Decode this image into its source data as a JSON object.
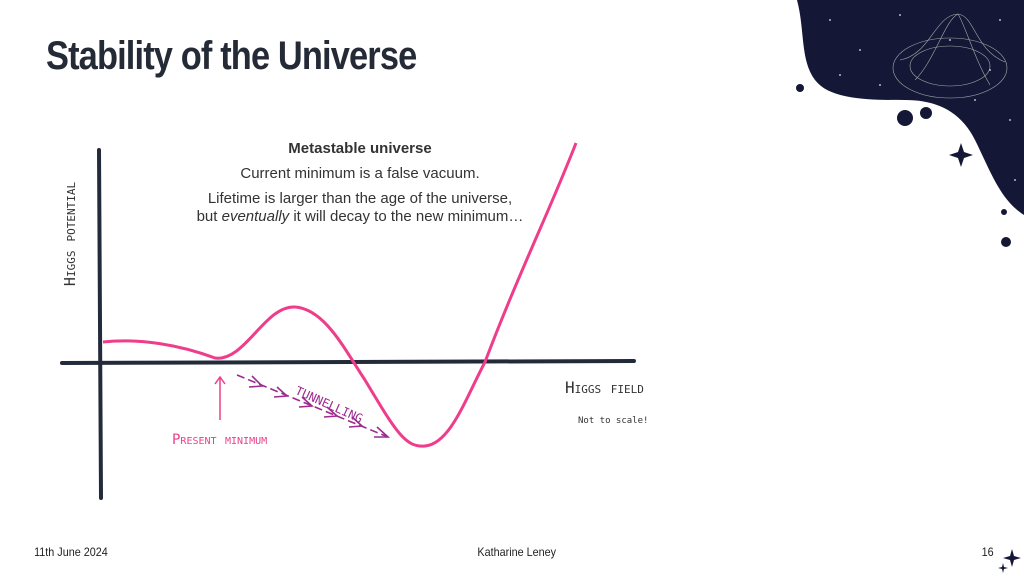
{
  "slide": {
    "title": "Stability of the Universe",
    "heading": "Metastable universe",
    "line1": "Current minimum is a false vacuum.",
    "line2": "Lifetime is larger than the age of the universe,",
    "line3_pre": "but ",
    "line3_em": "eventually",
    "line3_post": " it will decay to the new minimum…",
    "y_axis_label": "Higgs potential",
    "x_axis_label": "Higgs field",
    "note": "Not to scale!",
    "present_minimum": "Present minimum",
    "tunnelling": "Tunnelling"
  },
  "footer": {
    "date": "11th June 2024",
    "author": "Katharine Leney",
    "page": "16"
  },
  "colors": {
    "curve": "#ee3d8a",
    "tunnel": "#9c2a8f",
    "axis": "#232a3a",
    "space": "#141836"
  }
}
